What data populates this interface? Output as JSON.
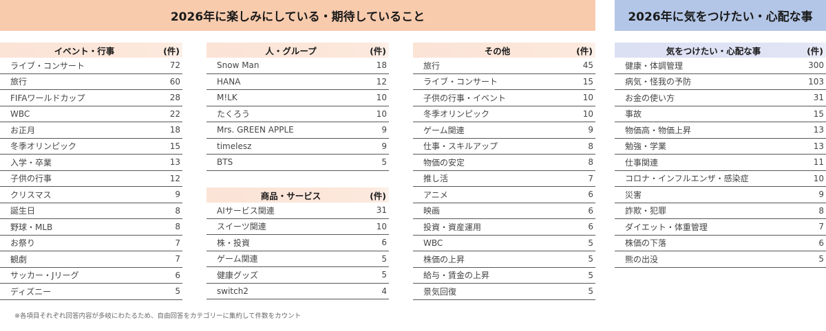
{
  "banners": {
    "main": "2026年に楽しみにしている・期待していること",
    "worry": "2026年に気をつけたい・心配な事"
  },
  "unit": "(件)",
  "tables": {
    "events": {
      "title": "イベント・行事",
      "rows": [
        {
          "label": "ライブ・コンサート",
          "value": "72"
        },
        {
          "label": "旅行",
          "value": "60"
        },
        {
          "label": "FIFAワールドカップ",
          "value": "28"
        },
        {
          "label": "WBC",
          "value": "22"
        },
        {
          "label": "お正月",
          "value": "18"
        },
        {
          "label": "冬季オリンピック",
          "value": "15"
        },
        {
          "label": "入学・卒業",
          "value": "13"
        },
        {
          "label": "子供の行事",
          "value": "12"
        },
        {
          "label": "クリスマス",
          "value": "9"
        },
        {
          "label": "誕生日",
          "value": "8"
        },
        {
          "label": "野球・MLB",
          "value": "8"
        },
        {
          "label": "お祭り",
          "value": "7"
        },
        {
          "label": "観劇",
          "value": "7"
        },
        {
          "label": "サッカー・Jリーグ",
          "value": "6"
        },
        {
          "label": "ディズニー",
          "value": "5"
        }
      ]
    },
    "people": {
      "title": "人・グループ",
      "rows": [
        {
          "label": "Snow Man",
          "value": "18"
        },
        {
          "label": "HANA",
          "value": "12"
        },
        {
          "label": "M!LK",
          "value": "10"
        },
        {
          "label": "たくろう",
          "value": "10"
        },
        {
          "label": "Mrs. GREEN APPLE",
          "value": "9"
        },
        {
          "label": "timelesz",
          "value": "9"
        },
        {
          "label": "BTS",
          "value": "5"
        }
      ]
    },
    "products": {
      "title": "商品・サービス",
      "rows": [
        {
          "label": "AIサービス関連",
          "value": "31"
        },
        {
          "label": "スイーツ関連",
          "value": "10"
        },
        {
          "label": "株・投資",
          "value": "6"
        },
        {
          "label": "ゲーム関連",
          "value": "5"
        },
        {
          "label": "健康グッズ",
          "value": "5"
        },
        {
          "label": "switch2",
          "value": "4"
        }
      ]
    },
    "others": {
      "title": "その他",
      "rows": [
        {
          "label": "旅行",
          "value": "45"
        },
        {
          "label": "ライブ・コンサート",
          "value": "15"
        },
        {
          "label": "子供の行事・イベント",
          "value": "10"
        },
        {
          "label": "冬季オリンピック",
          "value": "10"
        },
        {
          "label": "ゲーム関連",
          "value": "9"
        },
        {
          "label": "仕事・スキルアップ",
          "value": "8"
        },
        {
          "label": "物価の安定",
          "value": "8"
        },
        {
          "label": "推し活",
          "value": "7"
        },
        {
          "label": "アニメ",
          "value": "6"
        },
        {
          "label": "映画",
          "value": "6"
        },
        {
          "label": "投資・資産運用",
          "value": "6"
        },
        {
          "label": "WBC",
          "value": "5"
        },
        {
          "label": "株価の上昇",
          "value": "5"
        },
        {
          "label": "給与・賃金の上昇",
          "value": "5"
        },
        {
          "label": "景気回復",
          "value": "5"
        }
      ]
    },
    "worries": {
      "title": "気をつけたい・心配な事",
      "rows": [
        {
          "label": "健康・体調管理",
          "value": "300"
        },
        {
          "label": "病気・怪我の予防",
          "value": "103"
        },
        {
          "label": "お金の使い方",
          "value": "31"
        },
        {
          "label": "事故",
          "value": "15"
        },
        {
          "label": "物価高・物価上昇",
          "value": "13"
        },
        {
          "label": "勉強・学業",
          "value": "13"
        },
        {
          "label": "仕事関連",
          "value": "11"
        },
        {
          "label": "コロナ・インフルエンザ・感染症",
          "value": "10"
        },
        {
          "label": "災害",
          "value": "9"
        },
        {
          "label": "詐欺・犯罪",
          "value": "8"
        },
        {
          "label": "ダイエット・体重管理",
          "value": "7"
        },
        {
          "label": "株価の下落",
          "value": "6"
        },
        {
          "label": "熊の出没",
          "value": "5"
        }
      ]
    }
  },
  "footnote": "※各項目それぞれ回答内容が多岐にわたるため、自由回答をカテゴリーに集約して件数をカウント",
  "colors": {
    "main_banner": "#F8CBAD",
    "worry_banner": "#B4C6E7",
    "main_header": "#FBE3D6",
    "worry_header": "#DCE0F3"
  }
}
